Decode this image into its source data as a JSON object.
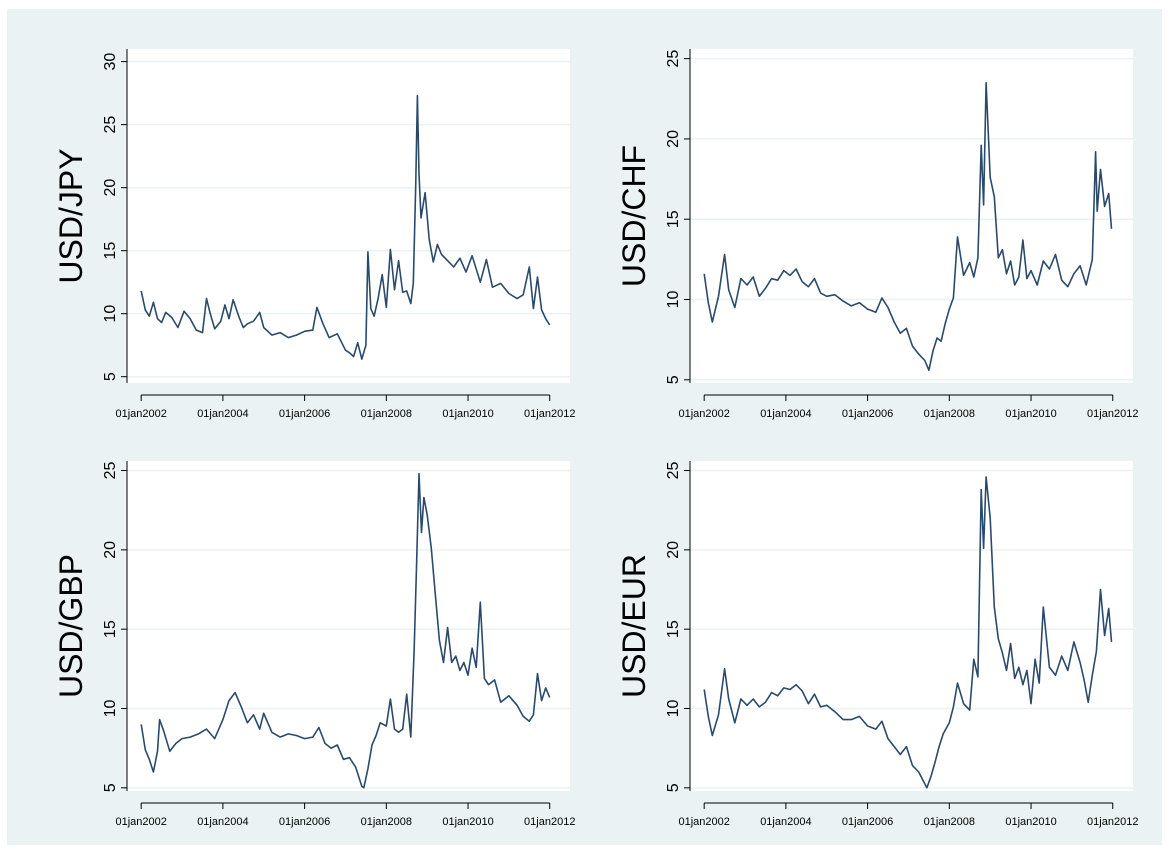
{
  "chart_data": [
    {
      "type": "line",
      "ylabel": "USD/JPY",
      "ylim": [
        4.5,
        31
      ],
      "yticks": [
        5,
        10,
        15,
        20,
        25,
        30
      ],
      "xticks": [
        2002,
        2004,
        2006,
        2008,
        2010,
        2012
      ],
      "xtick_labels": [
        "01jan2002",
        "01jan2004",
        "01jan2006",
        "01jan2008",
        "01jan2010",
        "01jan2012"
      ],
      "grid": true,
      "series": [
        {
          "color": "#2a4a6b",
          "x": [
            2002.0,
            2002.1,
            2002.2,
            2002.3,
            2002.4,
            2002.5,
            2002.6,
            2002.75,
            2002.9,
            2003.05,
            2003.2,
            2003.35,
            2003.5,
            2003.6,
            2003.7,
            2003.8,
            2003.95,
            2004.05,
            2004.15,
            2004.25,
            2004.4,
            2004.5,
            2004.6,
            2004.75,
            2004.9,
            2005.0,
            2005.2,
            2005.4,
            2005.6,
            2005.8,
            2006.0,
            2006.2,
            2006.3,
            2006.45,
            2006.6,
            2006.8,
            2007.0,
            2007.1,
            2007.2,
            2007.3,
            2007.4,
            2007.5,
            2007.55,
            2007.62,
            2007.7,
            2007.8,
            2007.9,
            2008.0,
            2008.1,
            2008.2,
            2008.3,
            2008.4,
            2008.5,
            2008.6,
            2008.66,
            2008.72,
            2008.76,
            2008.8,
            2008.85,
            2008.95,
            2009.05,
            2009.15,
            2009.25,
            2009.35,
            2009.5,
            2009.65,
            2009.8,
            2009.95,
            2010.1,
            2010.3,
            2010.45,
            2010.6,
            2010.8,
            2011.0,
            2011.2,
            2011.35,
            2011.5,
            2011.6,
            2011.7,
            2011.8,
            2011.9,
            2012.0
          ],
          "values": [
            11.8,
            10.3,
            9.8,
            10.9,
            9.6,
            9.3,
            10.1,
            9.7,
            8.9,
            10.2,
            9.6,
            8.7,
            8.5,
            11.2,
            9.9,
            8.8,
            9.4,
            10.7,
            9.6,
            11.1,
            9.7,
            8.9,
            9.2,
            9.4,
            10.1,
            8.9,
            8.3,
            8.5,
            8.1,
            8.3,
            8.6,
            8.7,
            10.5,
            9.2,
            8.1,
            8.4,
            7.1,
            6.9,
            6.6,
            7.7,
            6.4,
            7.5,
            14.9,
            10.4,
            9.8,
            11.2,
            13.1,
            10.5,
            15.1,
            11.9,
            14.2,
            11.7,
            11.8,
            10.8,
            12.4,
            20.1,
            27.3,
            21.1,
            17.6,
            19.6,
            15.9,
            14.1,
            15.5,
            14.7,
            14.2,
            13.7,
            14.4,
            13.3,
            14.6,
            12.5,
            14.3,
            12.1,
            12.4,
            11.6,
            11.2,
            11.5,
            13.7,
            10.4,
            12.9,
            10.3,
            9.6,
            9.1
          ]
        }
      ]
    },
    {
      "type": "line",
      "ylabel": "USD/CHF",
      "ylim": [
        4.8,
        25.6
      ],
      "yticks": [
        5,
        10,
        15,
        20,
        25
      ],
      "xticks": [
        2002,
        2004,
        2006,
        2008,
        2010,
        2012
      ],
      "xtick_labels": [
        "01jan2002",
        "01jan2004",
        "01jan2006",
        "01jan2008",
        "01jan2010",
        "01jan2012"
      ],
      "grid": true,
      "series": [
        {
          "color": "#2a4a6b",
          "x": [
            2002.0,
            2002.1,
            2002.2,
            2002.35,
            2002.5,
            2002.6,
            2002.75,
            2002.9,
            2003.05,
            2003.2,
            2003.35,
            2003.5,
            2003.65,
            2003.8,
            2003.95,
            2004.1,
            2004.25,
            2004.4,
            2004.55,
            2004.7,
            2004.85,
            2005.0,
            2005.2,
            2005.4,
            2005.6,
            2005.8,
            2006.0,
            2006.2,
            2006.35,
            2006.5,
            2006.65,
            2006.8,
            2006.95,
            2007.1,
            2007.25,
            2007.4,
            2007.5,
            2007.6,
            2007.7,
            2007.8,
            2007.9,
            2008.0,
            2008.1,
            2008.2,
            2008.35,
            2008.5,
            2008.6,
            2008.7,
            2008.78,
            2008.84,
            2008.9,
            2009.0,
            2009.1,
            2009.2,
            2009.3,
            2009.4,
            2009.5,
            2009.6,
            2009.7,
            2009.8,
            2009.9,
            2010.0,
            2010.15,
            2010.3,
            2010.45,
            2010.6,
            2010.75,
            2010.9,
            2011.05,
            2011.2,
            2011.35,
            2011.5,
            2011.58,
            2011.62,
            2011.7,
            2011.8,
            2011.9,
            2011.97
          ],
          "values": [
            11.6,
            9.8,
            8.6,
            10.2,
            12.8,
            10.6,
            9.5,
            11.3,
            10.9,
            11.4,
            10.2,
            10.7,
            11.3,
            11.2,
            11.8,
            11.5,
            11.9,
            11.1,
            10.8,
            11.3,
            10.4,
            10.2,
            10.3,
            9.9,
            9.6,
            9.8,
            9.4,
            9.2,
            10.1,
            9.5,
            8.6,
            7.9,
            8.2,
            7.1,
            6.6,
            6.2,
            5.6,
            6.8,
            7.6,
            7.4,
            8.5,
            9.4,
            10.1,
            13.9,
            11.5,
            12.3,
            11.4,
            12.6,
            19.6,
            15.9,
            23.5,
            17.6,
            16.4,
            12.6,
            13.1,
            11.6,
            12.4,
            10.9,
            11.4,
            13.7,
            11.3,
            11.8,
            10.9,
            12.4,
            11.9,
            12.8,
            11.2,
            10.8,
            11.6,
            12.1,
            10.9,
            12.5,
            19.2,
            15.5,
            18.1,
            15.8,
            16.6,
            14.4
          ]
        }
      ]
    },
    {
      "type": "line",
      "ylabel": "USD/GBP",
      "ylim": [
        4.8,
        25.6
      ],
      "yticks": [
        5,
        10,
        15,
        20,
        25
      ],
      "xticks": [
        2002,
        2004,
        2006,
        2008,
        2010,
        2012
      ],
      "xtick_labels": [
        "01jan2002",
        "01jan2004",
        "01jan2006",
        "01jan2008",
        "01jan2010",
        "01jan2012"
      ],
      "grid": true,
      "series": [
        {
          "color": "#2a4a6b",
          "x": [
            2002.0,
            2002.1,
            2002.2,
            2002.3,
            2002.4,
            2002.45,
            2002.55,
            2002.7,
            2002.85,
            2003.0,
            2003.2,
            2003.4,
            2003.6,
            2003.8,
            2004.0,
            2004.15,
            2004.3,
            2004.45,
            2004.6,
            2004.75,
            2004.9,
            2005.0,
            2005.2,
            2005.4,
            2005.6,
            2005.8,
            2006.0,
            2006.2,
            2006.35,
            2006.5,
            2006.65,
            2006.8,
            2006.95,
            2007.1,
            2007.25,
            2007.4,
            2007.45,
            2007.55,
            2007.65,
            2007.75,
            2007.85,
            2008.0,
            2008.1,
            2008.2,
            2008.3,
            2008.4,
            2008.5,
            2008.6,
            2008.68,
            2008.74,
            2008.8,
            2008.86,
            2008.92,
            2009.0,
            2009.1,
            2009.2,
            2009.3,
            2009.4,
            2009.5,
            2009.6,
            2009.7,
            2009.8,
            2009.9,
            2010.0,
            2010.1,
            2010.2,
            2010.3,
            2010.4,
            2010.5,
            2010.65,
            2010.8,
            2011.0,
            2011.2,
            2011.35,
            2011.5,
            2011.6,
            2011.7,
            2011.8,
            2011.9,
            2012.0
          ],
          "values": [
            9.0,
            7.4,
            6.8,
            6.0,
            7.3,
            9.3,
            8.6,
            7.3,
            7.8,
            8.1,
            8.2,
            8.4,
            8.7,
            8.1,
            9.3,
            10.5,
            11.0,
            10.1,
            9.1,
            9.6,
            8.7,
            9.7,
            8.5,
            8.2,
            8.4,
            8.3,
            8.1,
            8.2,
            8.8,
            7.8,
            7.5,
            7.7,
            6.8,
            6.9,
            6.3,
            5.1,
            5.0,
            6.2,
            7.7,
            8.3,
            9.1,
            8.9,
            10.6,
            8.7,
            8.5,
            8.7,
            10.9,
            8.2,
            13.6,
            18.9,
            24.8,
            21.1,
            23.3,
            22.2,
            20.1,
            17.2,
            14.3,
            12.9,
            15.1,
            12.9,
            13.3,
            12.4,
            12.9,
            12.1,
            13.8,
            12.6,
            16.7,
            11.9,
            11.5,
            11.8,
            10.4,
            10.8,
            10.2,
            9.5,
            9.2,
            9.6,
            12.2,
            10.5,
            11.3,
            10.7
          ]
        }
      ]
    },
    {
      "type": "line",
      "ylabel": "USD/EUR",
      "ylim": [
        4.8,
        25.6
      ],
      "yticks": [
        5,
        10,
        15,
        20,
        25
      ],
      "xticks": [
        2002,
        2004,
        2006,
        2008,
        2010,
        2012
      ],
      "xtick_labels": [
        "01jan2002",
        "01jan2004",
        "01jan2006",
        "01jan2008",
        "01jan2010",
        "01jan2012"
      ],
      "grid": true,
      "series": [
        {
          "color": "#2a4a6b",
          "x": [
            2002.0,
            2002.1,
            2002.2,
            2002.35,
            2002.5,
            2002.6,
            2002.75,
            2002.9,
            2003.05,
            2003.2,
            2003.35,
            2003.5,
            2003.65,
            2003.8,
            2003.95,
            2004.1,
            2004.25,
            2004.4,
            2004.55,
            2004.7,
            2004.85,
            2005.0,
            2005.2,
            2005.4,
            2005.6,
            2005.8,
            2006.0,
            2006.2,
            2006.35,
            2006.5,
            2006.65,
            2006.8,
            2006.95,
            2007.1,
            2007.25,
            2007.35,
            2007.45,
            2007.55,
            2007.65,
            2007.75,
            2007.85,
            2008.0,
            2008.1,
            2008.2,
            2008.35,
            2008.5,
            2008.6,
            2008.7,
            2008.78,
            2008.84,
            2008.9,
            2009.0,
            2009.1,
            2009.2,
            2009.3,
            2009.4,
            2009.5,
            2009.6,
            2009.7,
            2009.8,
            2009.9,
            2010.0,
            2010.1,
            2010.2,
            2010.3,
            2010.45,
            2010.6,
            2010.75,
            2010.9,
            2011.05,
            2011.2,
            2011.3,
            2011.4,
            2011.5,
            2011.6,
            2011.7,
            2011.8,
            2011.9,
            2011.97
          ],
          "values": [
            11.2,
            9.5,
            8.3,
            9.6,
            12.5,
            10.6,
            9.1,
            10.6,
            10.2,
            10.6,
            10.1,
            10.4,
            11.0,
            10.8,
            11.3,
            11.2,
            11.5,
            11.1,
            10.3,
            10.9,
            10.1,
            10.2,
            9.8,
            9.3,
            9.3,
            9.5,
            8.9,
            8.7,
            9.2,
            8.1,
            7.6,
            7.1,
            7.6,
            6.4,
            6.0,
            5.5,
            5.0,
            5.7,
            6.6,
            7.6,
            8.4,
            9.1,
            10.1,
            11.6,
            10.3,
            9.9,
            13.1,
            12.0,
            23.8,
            20.1,
            24.6,
            22.0,
            16.4,
            14.4,
            13.5,
            12.4,
            14.1,
            11.9,
            12.6,
            11.5,
            12.4,
            10.3,
            13.1,
            11.6,
            16.4,
            12.6,
            12.1,
            13.3,
            12.4,
            14.2,
            12.9,
            11.8,
            10.4,
            12.1,
            13.6,
            17.5,
            14.6,
            16.3,
            14.2
          ]
        }
      ]
    }
  ]
}
